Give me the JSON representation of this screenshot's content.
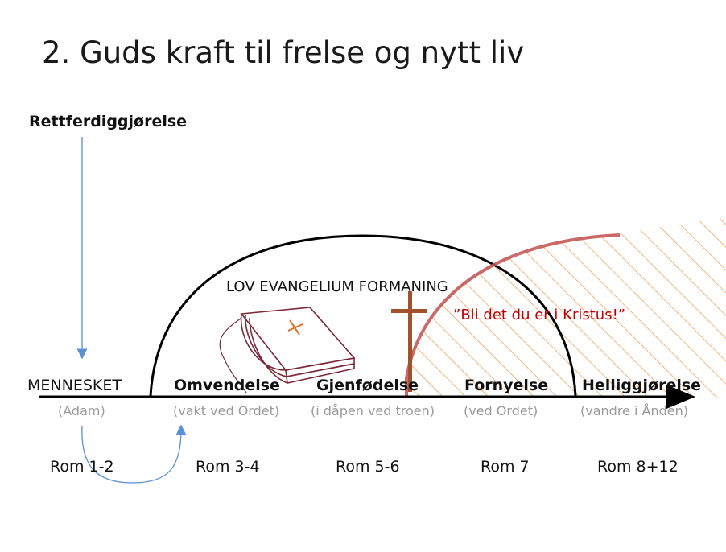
{
  "title": "2. Guds kraft til frelse og nytt liv",
  "left_label": "Rettferdiggjørelse",
  "arc_text": "LOV  EVANGELIUM  FORMANING",
  "quote": "”Bli det du er i Kristus!”",
  "stages": [
    {
      "label": "MENNESKET",
      "bold": false,
      "sub": "(Adam)",
      "rom": "Rom 1-2"
    },
    {
      "label": "Omvendelse",
      "bold": true,
      "sub": "(vakt ved Ordet)",
      "rom": "Rom 3-4"
    },
    {
      "label": "Gjenfødelse",
      "bold": true,
      "sub": "(i dåpen ved troen)",
      "rom": "Rom 5-6"
    },
    {
      "label": "Fornyelse",
      "bold": true,
      "sub": "(ved Ordet)",
      "rom": "Rom 7"
    },
    {
      "label": "Helliggjørelse",
      "bold": true,
      "sub": "(vandre i Ånden)",
      "rom": "Rom 8+12"
    }
  ],
  "colors": {
    "arrow_blue": "#5b8fd6",
    "hatch_orange": "#f2a25a",
    "red_arc": "#c0504d",
    "cross_brown": "#a0522d",
    "book_maroon": "#7a2a3a",
    "quote_red": "#c00000"
  },
  "icons": [
    "book-icon",
    "cross-icon"
  ]
}
